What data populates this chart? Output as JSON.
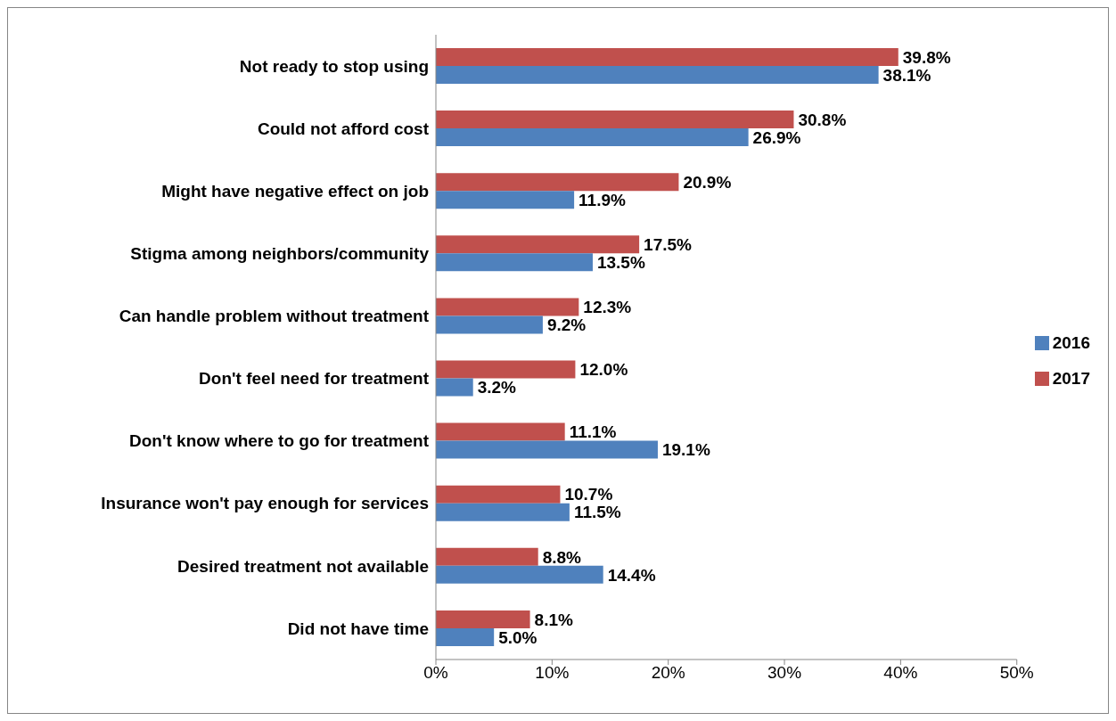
{
  "chart_data": {
    "type": "bar",
    "orientation": "horizontal",
    "categories": [
      "Not ready to stop using",
      "Could not afford cost",
      "Might have negative effect on job",
      "Stigma among neighbors/community",
      "Can handle problem without treatment",
      "Don't feel need for treatment",
      "Don't know where to go for treatment",
      "Insurance won't pay enough for services",
      "Desired treatment not available",
      "Did not have time"
    ],
    "series": [
      {
        "name": "2017",
        "color": "#c0504d",
        "values": [
          39.8,
          30.8,
          20.9,
          17.5,
          12.3,
          12.0,
          11.1,
          10.7,
          8.8,
          8.1
        ],
        "value_labels": [
          "39.8%",
          "30.8%",
          "20.9%",
          "17.5%",
          "12.3%",
          "12.0%",
          "11.1%",
          "10.7%",
          "8.8%",
          "8.1%"
        ]
      },
      {
        "name": "2016",
        "color": "#4f81bd",
        "values": [
          38.1,
          26.9,
          11.9,
          13.5,
          9.2,
          3.2,
          19.1,
          11.5,
          14.4,
          5.0
        ],
        "value_labels": [
          "38.1%",
          "26.9%",
          "11.9%",
          "13.5%",
          "9.2%",
          "3.2%",
          "19.1%",
          "11.5%",
          "14.4%",
          "5.0%"
        ]
      }
    ],
    "xlim": [
      0,
      50
    ],
    "xticks": [
      {
        "value": 0,
        "label": "0%"
      },
      {
        "value": 10,
        "label": "10%"
      },
      {
        "value": 20,
        "label": "20%"
      },
      {
        "value": 30,
        "label": "30%"
      },
      {
        "value": 40,
        "label": "40%"
      },
      {
        "value": 50,
        "label": "50%"
      }
    ],
    "grid": false,
    "legend": "right"
  }
}
